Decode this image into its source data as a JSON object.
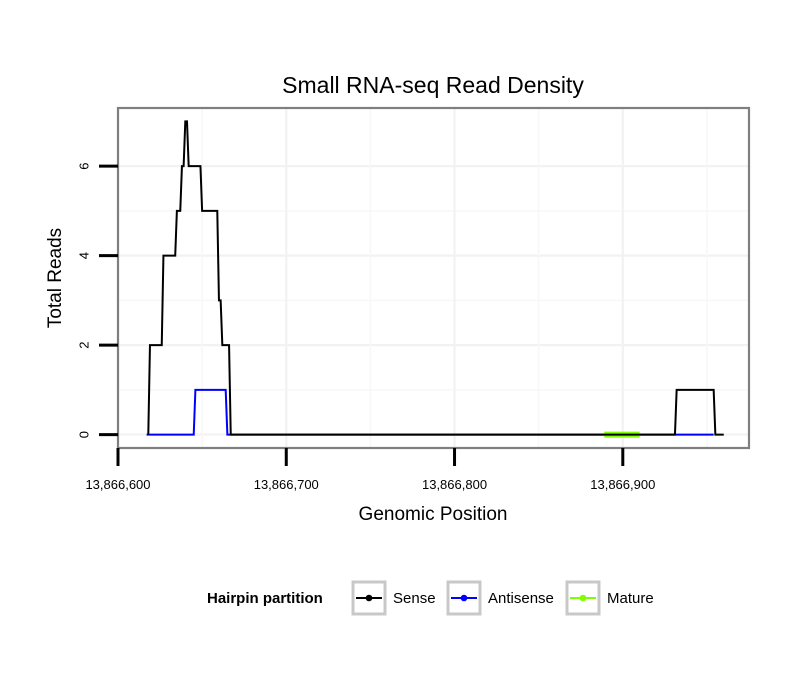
{
  "chart_data": {
    "type": "line",
    "title": "Small RNA-seq Read Density",
    "xlabel": "Genomic Position",
    "ylabel": "Total Reads",
    "xlim": [
      13866600,
      13866975
    ],
    "ylim": [
      -0.3,
      7.3
    ],
    "x_ticks": [
      13866600,
      13866700,
      13866800,
      13866900
    ],
    "x_tick_labels": [
      "13,866,600",
      "13,866,700",
      "13,866,800",
      "13,866,900"
    ],
    "y_ticks": [
      0,
      2,
      4,
      6
    ],
    "y_tick_labels": [
      "0",
      "2",
      "4",
      "6"
    ],
    "grid": true,
    "legend": {
      "position": "bottom",
      "title": "Hairpin partition",
      "entries": [
        "Sense",
        "Antisense",
        "Mature"
      ]
    },
    "series": [
      {
        "name": "Sense",
        "color": "#000000",
        "x": [
          13866618,
          13866619,
          13866626,
          13866627,
          13866634,
          13866635,
          13866637,
          13866638,
          13866639,
          13866640,
          13866641,
          13866642,
          13866643,
          13866644,
          13866649,
          13866650,
          13866659,
          13866660,
          13866661,
          13866662,
          13866666,
          13866667,
          13866668,
          13866931,
          13866932,
          13866954,
          13866955,
          13866960
        ],
        "values": [
          0,
          2,
          2,
          4,
          4,
          5,
          5,
          6,
          6,
          7,
          7,
          6,
          6,
          6,
          6,
          5,
          5,
          3,
          3,
          2,
          2,
          0,
          0,
          0,
          1,
          1,
          0,
          0
        ]
      },
      {
        "name": "Antisense",
        "color": "#0000ff",
        "x": [
          13866617,
          13866645,
          13866646,
          13866664,
          13866665,
          13866667,
          13866929,
          13866954
        ],
        "values": [
          0,
          0,
          1,
          1,
          0,
          0,
          0,
          0
        ]
      },
      {
        "name": "Mature",
        "color": "#7fff00",
        "x": [
          13866889,
          13866910
        ],
        "values": [
          0,
          0
        ]
      }
    ]
  }
}
